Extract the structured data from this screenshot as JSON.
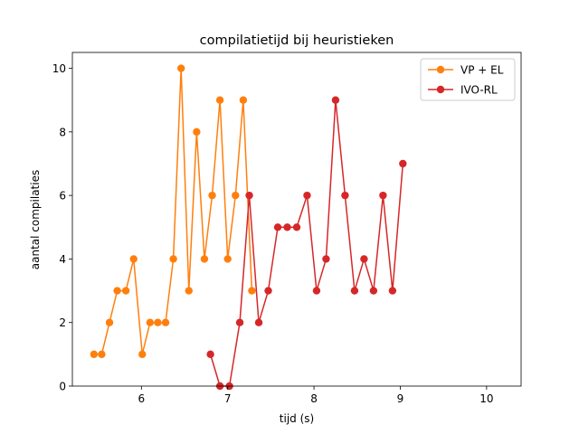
{
  "chart_data": {
    "type": "line",
    "title": "compilatietijd bij heuristieken",
    "xlabel": "tijd (s)",
    "ylabel": "aantal compilaties",
    "xlim": [
      5.2,
      10.4
    ],
    "ylim": [
      0,
      10.5
    ],
    "xticks": [
      6,
      7,
      8,
      9,
      10
    ],
    "yticks": [
      0,
      2,
      4,
      6,
      8,
      10
    ],
    "grid": false,
    "legend_position": "top-right",
    "series": [
      {
        "name": "VP + EL",
        "color": "#ff7f0e",
        "marker": "circle",
        "x": [
          5.45,
          5.54,
          5.63,
          5.72,
          5.82,
          5.91,
          6.01,
          6.1,
          6.19,
          6.28,
          6.37,
          6.46,
          6.55,
          6.64,
          6.73,
          6.82,
          6.91,
          7.0,
          7.09,
          7.18,
          7.28
        ],
        "y": [
          1,
          1,
          2,
          3,
          3,
          4,
          1,
          2,
          2,
          2,
          4,
          10,
          3,
          8,
          4,
          6,
          9,
          4,
          6,
          9,
          3
        ]
      },
      {
        "name": "IVO-RL",
        "color": "#d62728",
        "marker": "circle",
        "x": [
          6.8,
          6.91,
          7.02,
          7.14,
          7.25,
          7.36,
          7.47,
          7.58,
          7.69,
          7.8,
          7.92,
          8.03,
          8.14,
          8.25,
          8.36,
          8.47,
          8.58,
          8.69,
          8.8,
          8.91,
          9.03
        ],
        "y": [
          1,
          0,
          0,
          2,
          6,
          2,
          3,
          5,
          5,
          5,
          6,
          3,
          4,
          9,
          6,
          3,
          4,
          3,
          6,
          3,
          7
        ]
      }
    ]
  }
}
